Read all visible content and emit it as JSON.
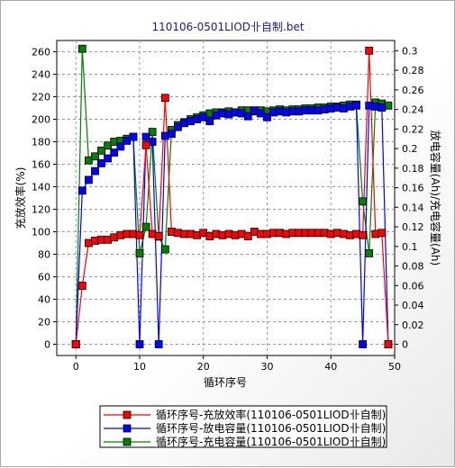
{
  "chart_data": {
    "type": "line",
    "title": "110106-0501LIOD卝自制.bet",
    "xlabel": "循环序号",
    "ylabel": "充放效率(%)",
    "y2label": "放电容量(Ah)/充电容量(Ah)",
    "xlim": [
      -3,
      50
    ],
    "ylim": [
      -10,
      270
    ],
    "y2lim": [
      -0.0115,
      0.3105
    ],
    "x_ticks": [
      0,
      10,
      20,
      30,
      40,
      50
    ],
    "y_ticks": [
      0,
      20,
      40,
      60,
      80,
      100,
      120,
      140,
      160,
      180,
      200,
      220,
      240,
      260
    ],
    "y2_ticks": [
      0,
      0.02,
      0.04,
      0.06,
      0.08,
      0.1,
      0.12,
      0.14,
      0.16,
      0.18,
      0.2,
      0.22,
      0.24,
      0.26,
      0.28,
      0.3
    ],
    "grid": true,
    "legend": "bottom",
    "series": [
      {
        "name": "循环序号-充放效率(110106-0501LIOD卝自制)",
        "axis": "left",
        "color": "#ff0000",
        "x": [
          0,
          1,
          2,
          3,
          4,
          5,
          6,
          7,
          8,
          9,
          10,
          11,
          12,
          13,
          14,
          15,
          16,
          17,
          18,
          19,
          20,
          21,
          22,
          23,
          24,
          25,
          26,
          27,
          28,
          29,
          30,
          31,
          32,
          33,
          34,
          35,
          36,
          37,
          38,
          39,
          40,
          41,
          42,
          43,
          44,
          45,
          46,
          47,
          48,
          49
        ],
        "y": [
          0,
          52,
          90,
          92,
          93,
          93,
          95,
          97,
          98,
          98,
          97,
          177,
          98,
          96,
          219,
          100,
          99,
          98,
          98,
          97,
          99,
          96,
          98,
          97,
          98,
          97,
          98,
          96,
          100,
          98,
          98,
          99,
          99,
          98,
          99,
          99,
          99,
          99,
          99,
          99,
          98,
          99,
          98,
          97,
          98,
          97,
          261,
          98,
          99,
          0
        ]
      },
      {
        "name": "循环序号-放电容量(110106-0501LIOD卝自制)",
        "axis": "right",
        "color": "#0000ff",
        "x": [
          0,
          1,
          2,
          3,
          4,
          5,
          6,
          7,
          8,
          9,
          10,
          11,
          12,
          13,
          14,
          15,
          16,
          17,
          18,
          19,
          20,
          21,
          22,
          23,
          24,
          25,
          26,
          27,
          28,
          29,
          30,
          31,
          32,
          33,
          34,
          35,
          36,
          37,
          38,
          39,
          40,
          41,
          42,
          43,
          44,
          45,
          46,
          47,
          48,
          49
        ],
        "y": [
          0,
          0.157,
          0.168,
          0.177,
          0.185,
          0.19,
          0.196,
          0.202,
          0.208,
          0.212,
          0,
          0.212,
          0.207,
          0,
          0.213,
          0.215,
          0.222,
          0.226,
          0.228,
          0.23,
          0.232,
          0.228,
          0.234,
          0.236,
          0.235,
          0.237,
          0.236,
          0.233,
          0.239,
          0.236,
          0.232,
          0.237,
          0.238,
          0.237,
          0.238,
          0.238,
          0.239,
          0.239,
          0.239,
          0.24,
          0.241,
          0.242,
          0.241,
          0.243,
          0.244,
          0,
          0.244,
          0.243,
          0.242,
          0
        ]
      },
      {
        "name": "循环序号-充电容量(110106-0501LIOD卝自制)",
        "axis": "right",
        "color": "#008000",
        "x": [
          0,
          1,
          2,
          3,
          4,
          5,
          6,
          7,
          8,
          9,
          10,
          11,
          12,
          13,
          14,
          15,
          16,
          17,
          18,
          19,
          20,
          21,
          22,
          23,
          24,
          25,
          26,
          27,
          28,
          29,
          30,
          31,
          32,
          33,
          34,
          35,
          36,
          37,
          38,
          39,
          40,
          41,
          42,
          43,
          44,
          45,
          46,
          47,
          48,
          49
        ],
        "y": [
          0,
          0.302,
          0.188,
          0.192,
          0.198,
          0.203,
          0.207,
          0.208,
          0.21,
          0.212,
          0.093,
          0.12,
          0.217,
          0.11,
          0.097,
          0.219,
          0.224,
          0.227,
          0.23,
          0.232,
          0.234,
          0.236,
          0.237,
          0.237,
          0.238,
          0.237,
          0.239,
          0.239,
          0.238,
          0.239,
          0.238,
          0.239,
          0.24,
          0.239,
          0.24,
          0.24,
          0.241,
          0.241,
          0.242,
          0.242,
          0.243,
          0.243,
          0.244,
          0.245,
          0.245,
          0.146,
          0.093,
          0.247,
          0.246,
          0.244
        ]
      }
    ]
  }
}
